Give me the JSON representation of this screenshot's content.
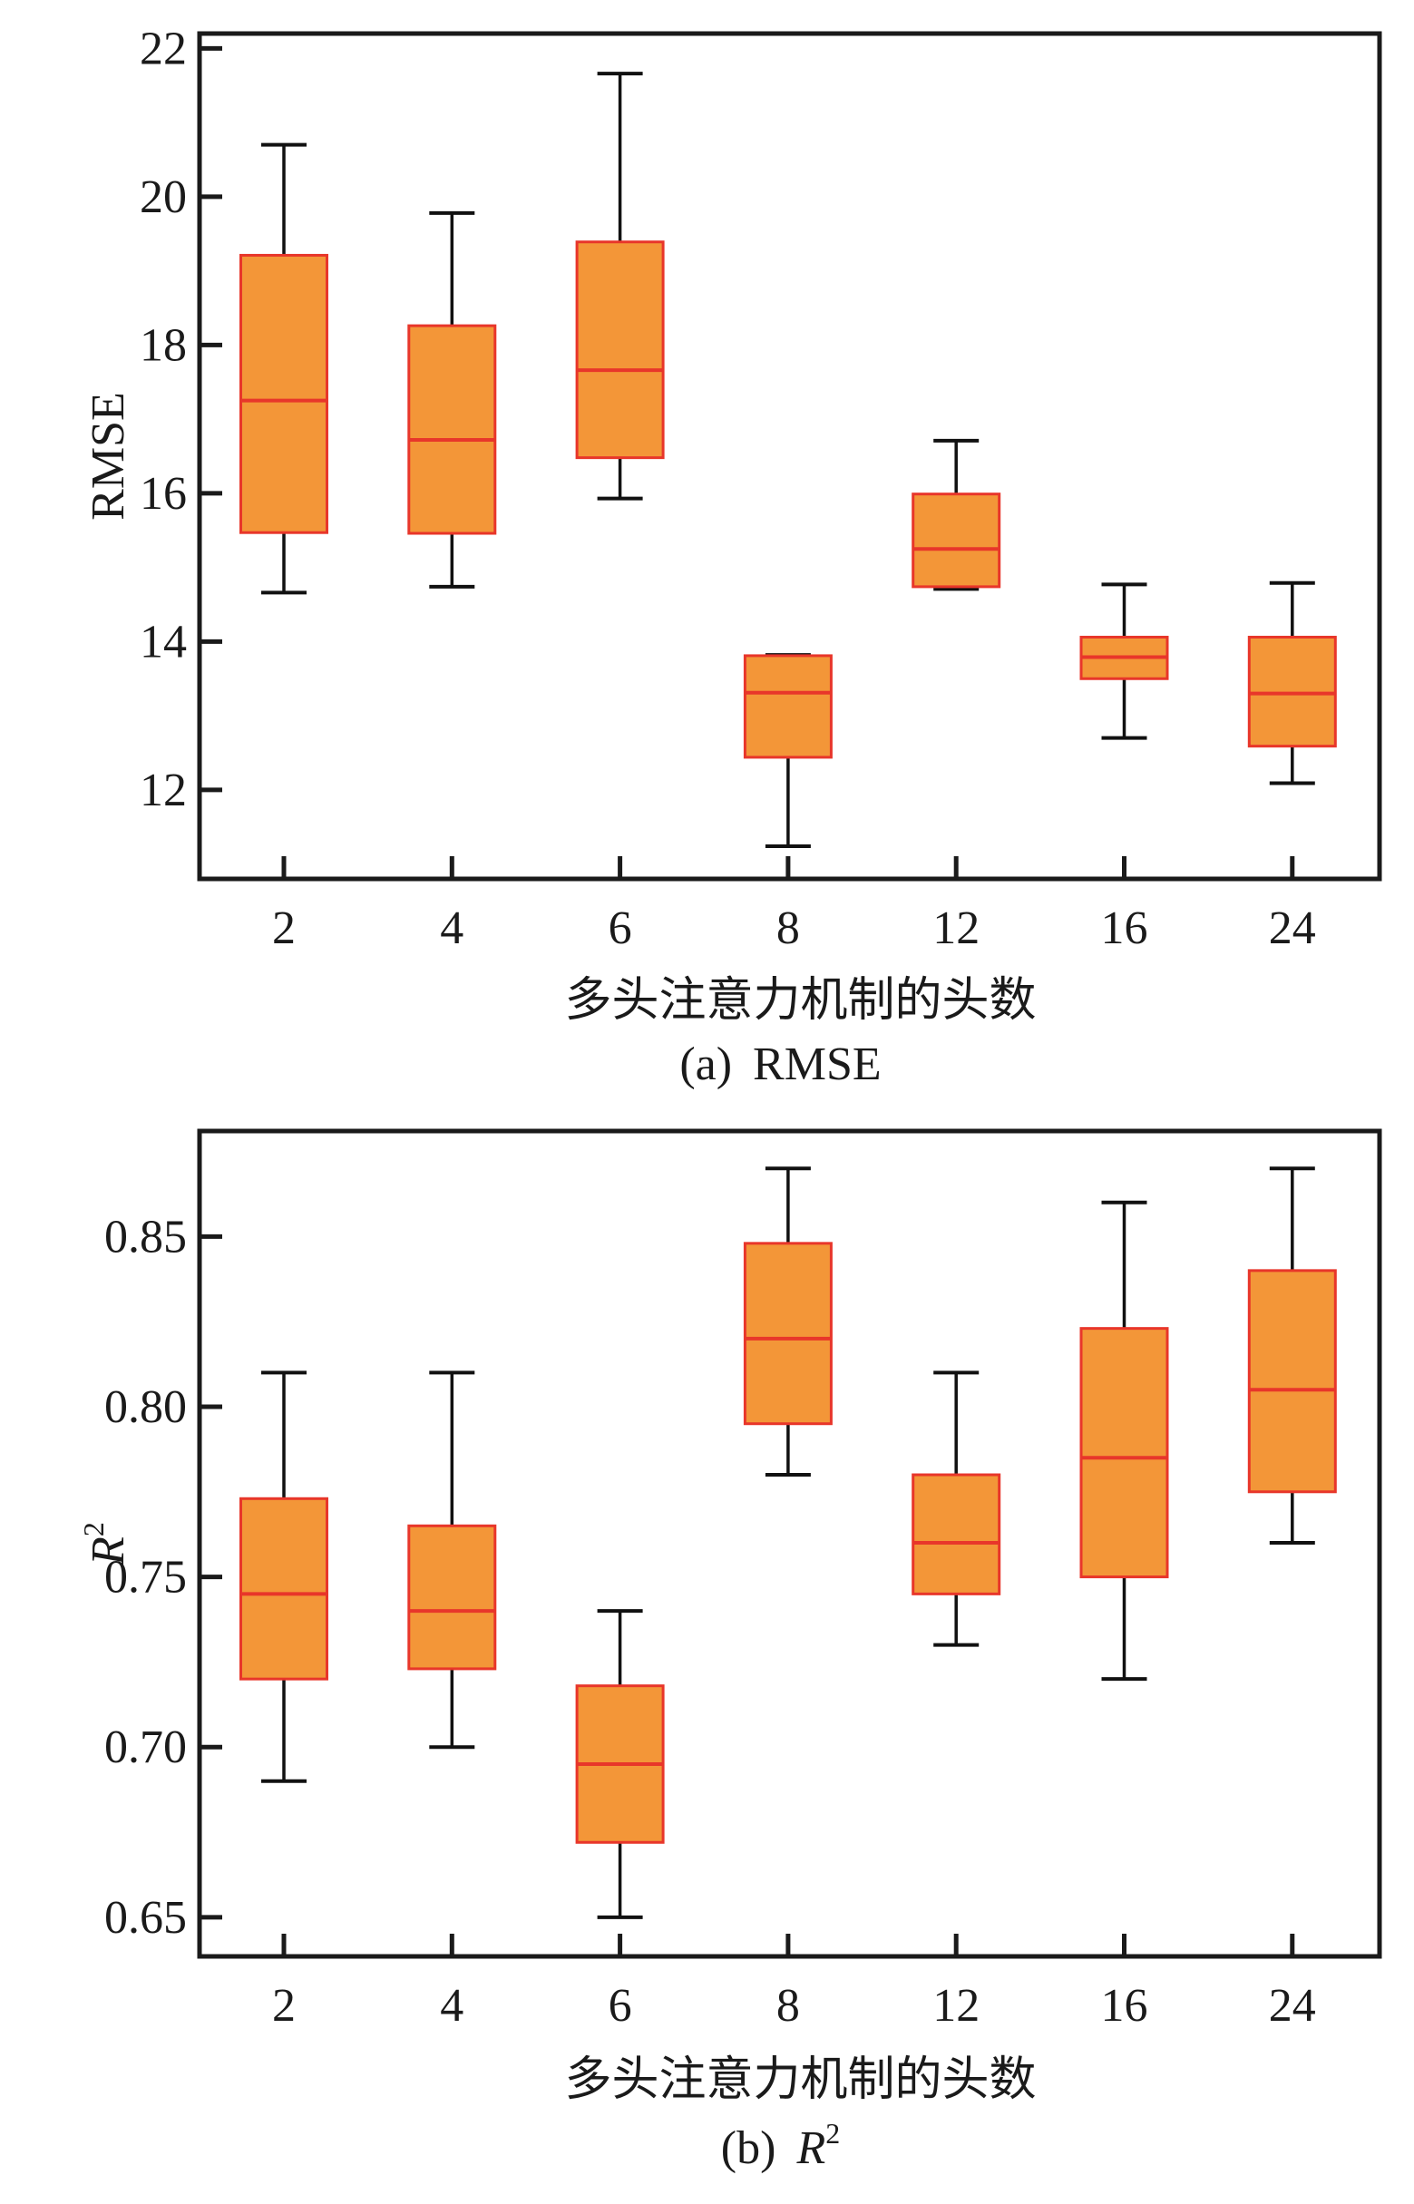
{
  "colors": {
    "box_fill": "#f39638",
    "box_edge": "#e8362a",
    "median": "#e8362a",
    "whisker": "#111111",
    "axis": "#1a1a1a"
  },
  "chart_data": [
    {
      "type": "boxplot",
      "panel": "a",
      "caption_prefix": "(a)",
      "caption_text": "RMSE",
      "title": "",
      "xlabel": "多头注意力机制的头数",
      "ylabel": "RMSE",
      "ylabel_sup": "",
      "ylim": [
        10.8,
        22.2
      ],
      "yticks": [
        12,
        14,
        16,
        18,
        20,
        22
      ],
      "ytick_labels": [
        "12",
        "14",
        "16",
        "18",
        "20",
        "22"
      ],
      "categories": [
        "2",
        "4",
        "6",
        "8",
        "12",
        "16",
        "24"
      ],
      "grid": false,
      "boxes": [
        {
          "min": 14.66,
          "q1": 15.47,
          "median": 17.25,
          "q3": 19.21,
          "max": 20.7
        },
        {
          "min": 14.74,
          "q1": 15.46,
          "median": 16.72,
          "q3": 18.26,
          "max": 19.78
        },
        {
          "min": 15.93,
          "q1": 16.48,
          "median": 17.66,
          "q3": 19.39,
          "max": 21.66
        },
        {
          "min": 11.24,
          "q1": 12.44,
          "median": 13.31,
          "q3": 13.81,
          "max": 13.82
        },
        {
          "min": 14.71,
          "q1": 14.74,
          "median": 15.25,
          "q3": 15.99,
          "max": 16.71
        },
        {
          "min": 12.7,
          "q1": 13.5,
          "median": 13.79,
          "q3": 14.06,
          "max": 14.77
        },
        {
          "min": 12.09,
          "q1": 12.59,
          "median": 13.3,
          "q3": 14.06,
          "max": 14.79
        }
      ]
    },
    {
      "type": "boxplot",
      "panel": "b",
      "caption_prefix": "(b)",
      "caption_text": "R",
      "caption_sup": "2",
      "title": "",
      "xlabel": "多头注意力机制的头数",
      "ylabel": "R",
      "ylabel_sup": "2",
      "ylim": [
        0.6385,
        0.881
      ],
      "yticks": [
        0.65,
        0.7,
        0.75,
        0.8,
        0.85
      ],
      "ytick_labels": [
        "0.65",
        "0.70",
        "0.75",
        "0.80",
        "0.85"
      ],
      "categories": [
        "2",
        "4",
        "6",
        "8",
        "12",
        "16",
        "24"
      ],
      "grid": false,
      "boxes": [
        {
          "min": 0.69,
          "q1": 0.72,
          "median": 0.745,
          "q3": 0.773,
          "max": 0.81
        },
        {
          "min": 0.7,
          "q1": 0.723,
          "median": 0.74,
          "q3": 0.765,
          "max": 0.81
        },
        {
          "min": 0.65,
          "q1": 0.672,
          "median": 0.695,
          "q3": 0.718,
          "max": 0.74
        },
        {
          "min": 0.78,
          "q1": 0.795,
          "median": 0.82,
          "q3": 0.848,
          "max": 0.87
        },
        {
          "min": 0.73,
          "q1": 0.745,
          "median": 0.76,
          "q3": 0.78,
          "max": 0.81
        },
        {
          "min": 0.72,
          "q1": 0.75,
          "median": 0.785,
          "q3": 0.823,
          "max": 0.86
        },
        {
          "min": 0.76,
          "q1": 0.775,
          "median": 0.805,
          "q3": 0.84,
          "max": 0.87
        }
      ]
    }
  ]
}
